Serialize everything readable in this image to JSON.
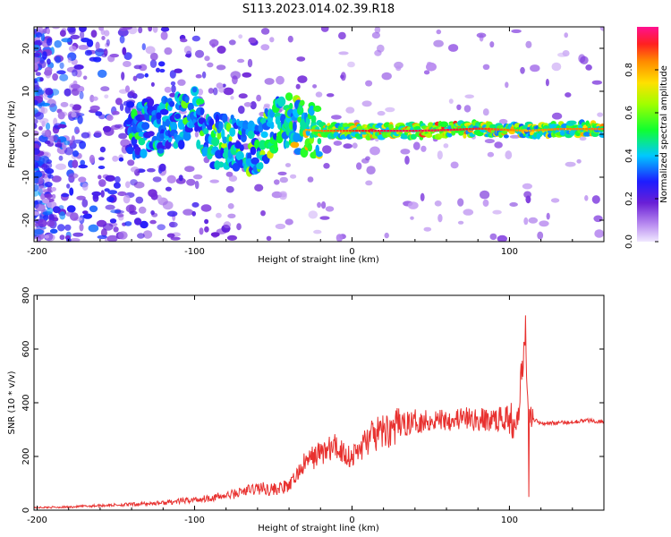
{
  "figure": {
    "title": "S113.2023.014.02.39.R18"
  },
  "chart_data": [
    {
      "type": "heatmap",
      "xlabel": "Height of straight line (km)",
      "ylabel": "Frequency (Hz)",
      "xlim": [
        -202,
        160
      ],
      "ylim": [
        -25,
        25
      ],
      "xticks": [
        -200,
        -100,
        0,
        100
      ],
      "yticks": [
        -20,
        -10,
        0,
        10,
        20
      ],
      "colorbar": {
        "label": "Normalized spectral amplitude",
        "range": [
          0,
          1
        ],
        "ticks": [
          0.0,
          0.2,
          0.4,
          0.6,
          0.8
        ],
        "colormap": "hsv"
      },
      "ridge": [
        {
          "x": -140,
          "y": 1.0,
          "a": 0.55
        },
        {
          "x": -120,
          "y": 2.0,
          "a": 0.6
        },
        {
          "x": -100,
          "y": 4.5,
          "a": 0.65
        },
        {
          "x": -90,
          "y": -1.5,
          "a": 0.7
        },
        {
          "x": -75,
          "y": -2.0,
          "a": 0.7
        },
        {
          "x": -60,
          "y": -4.0,
          "a": 0.65
        },
        {
          "x": -50,
          "y": 2.0,
          "a": 0.75
        },
        {
          "x": -40,
          "y": 3.5,
          "a": 0.8
        },
        {
          "x": -30,
          "y": 1.0,
          "a": 0.8
        },
        {
          "x": -20,
          "y": 0.8,
          "a": 0.85
        },
        {
          "x": 0,
          "y": 0.8,
          "a": 0.9
        },
        {
          "x": 20,
          "y": 0.8,
          "a": 0.95
        },
        {
          "x": 40,
          "y": 0.8,
          "a": 0.95
        },
        {
          "x": 60,
          "y": 1.0,
          "a": 0.95
        },
        {
          "x": 80,
          "y": 1.3,
          "a": 0.9
        },
        {
          "x": 100,
          "y": 1.0,
          "a": 0.85
        },
        {
          "x": 110,
          "y": 0.8,
          "a": 0.8
        },
        {
          "x": 130,
          "y": 1.2,
          "a": 0.85
        },
        {
          "x": 160,
          "y": 1.2,
          "a": 0.85
        }
      ]
    },
    {
      "type": "line",
      "xlabel": "Height of straight line (km)",
      "ylabel": "SNR (10 * v/v)",
      "xlim": [
        -202,
        160
      ],
      "ylim": [
        0,
        800
      ],
      "xticks": [
        -200,
        -100,
        0,
        100
      ],
      "yticks": [
        0,
        200,
        400,
        600,
        800
      ],
      "series": [
        {
          "color": "#e8312f",
          "x": [
            -202,
            -180,
            -160,
            -140,
            -120,
            -100,
            -80,
            -70,
            -60,
            -50,
            -40,
            -30,
            -20,
            -10,
            0,
            10,
            20,
            30,
            40,
            50,
            60,
            70,
            80,
            90,
            100,
            105,
            108,
            110,
            112,
            115,
            120,
            130,
            140,
            150,
            160
          ],
          "y": [
            10,
            12,
            18,
            22,
            28,
            40,
            55,
            70,
            85,
            80,
            90,
            180,
            220,
            240,
            200,
            270,
            300,
            320,
            335,
            340,
            345,
            345,
            340,
            340,
            350,
            360,
            520,
            700,
            420,
            340,
            325,
            325,
            330,
            335,
            330
          ]
        }
      ]
    }
  ]
}
